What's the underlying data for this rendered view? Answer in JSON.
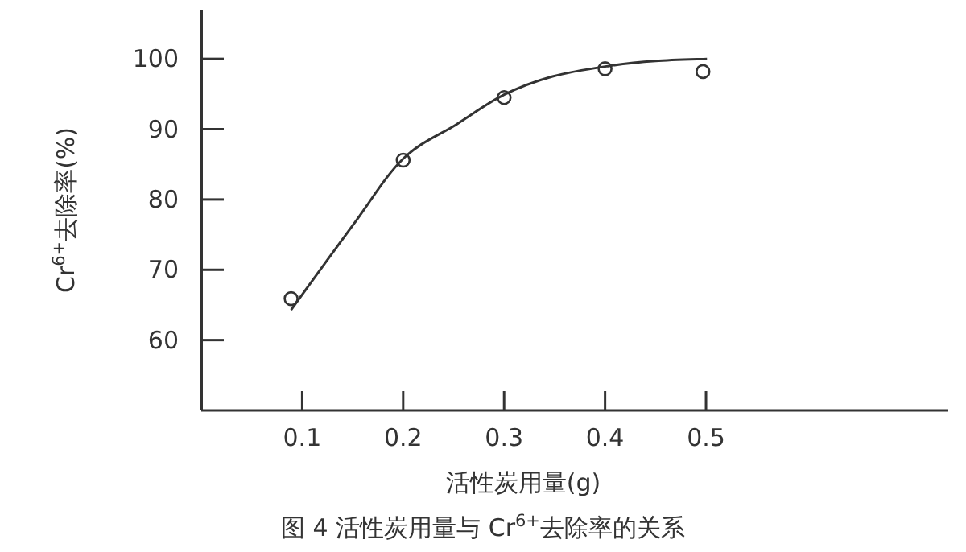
{
  "chart_data": {
    "type": "line",
    "title": "图 4 活性炭用量与 Cr$^{6+}$去除率的关系",
    "xlabel": "活性炭用量(g)",
    "ylabel": "Cr$^{6+}$去除率(%)",
    "xlim": [
      0,
      0.74
    ],
    "ylim": [
      50,
      107
    ],
    "xticks": [
      0.1,
      0.2,
      0.3,
      0.4,
      0.5
    ],
    "yticks": [
      60,
      70,
      80,
      90,
      100
    ],
    "series": [
      {
        "type": "scatter",
        "marker": "circle",
        "color": "#333333",
        "x": [
          0.089,
          0.2,
          0.3,
          0.4,
          0.497
        ],
        "values": [
          65.9,
          85.6,
          94.5,
          98.6,
          98.2
        ]
      },
      {
        "marker": "none",
        "color": "#333333",
        "x": [
          0.089,
          0.15,
          0.2,
          0.253,
          0.3,
          0.348,
          0.404,
          0.45,
          0.501
        ],
        "values": [
          64.3,
          76.3,
          85.8,
          90.7,
          94.9,
          97.5,
          99.0,
          99.7,
          100
        ]
      }
    ]
  }
}
